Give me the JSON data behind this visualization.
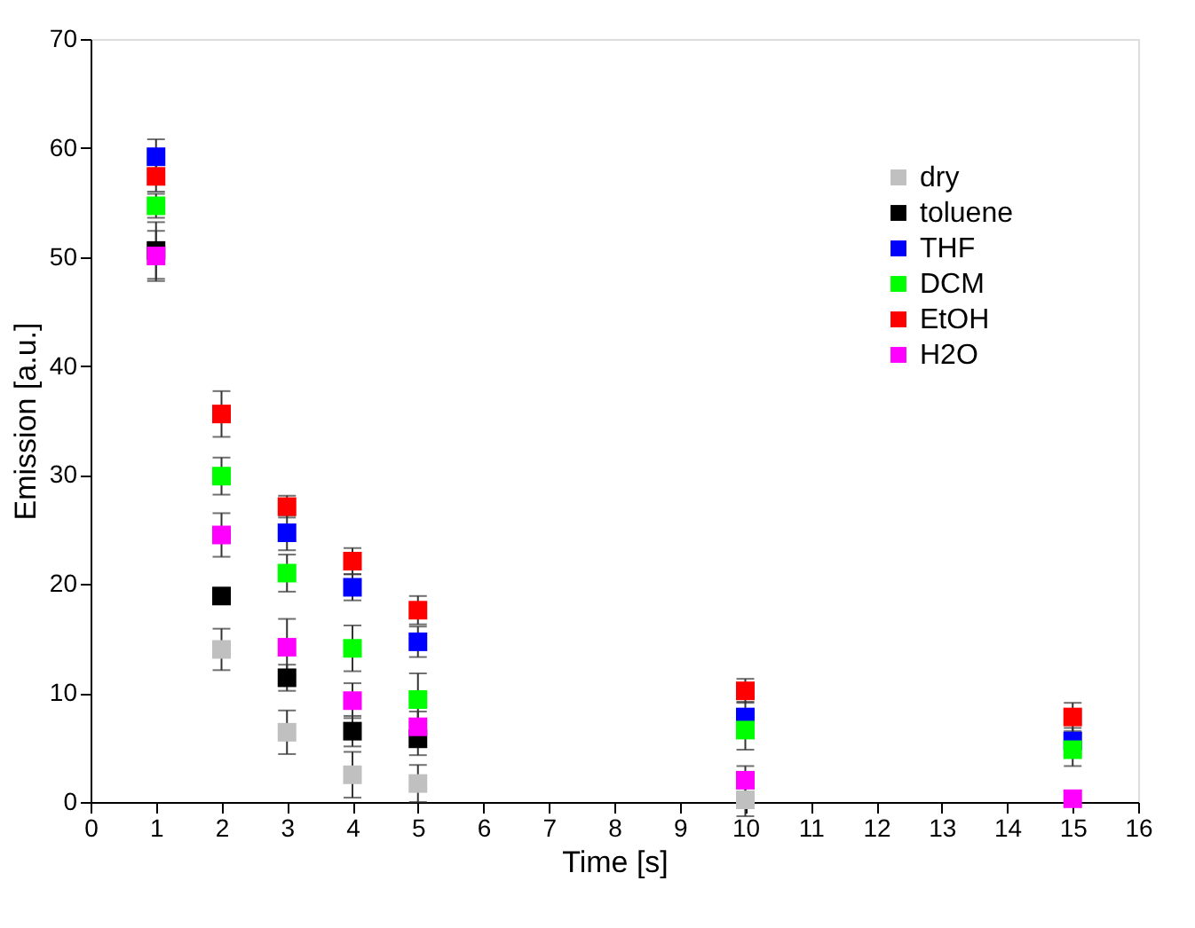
{
  "chart_data": {
    "type": "scatter",
    "xlabel": "Time [s]",
    "ylabel": "Emission [a.u.]",
    "x": [
      1,
      2,
      3,
      4,
      5,
      10,
      15
    ],
    "xlim": [
      0,
      16
    ],
    "xticks": [
      0,
      1,
      2,
      3,
      4,
      5,
      6,
      7,
      8,
      9,
      10,
      11,
      12,
      13,
      14,
      15,
      16
    ],
    "ylim": [
      0,
      70
    ],
    "yticks": [
      0,
      10,
      20,
      30,
      40,
      50,
      60,
      70
    ],
    "marker": "square",
    "grid": false,
    "legend": "top right",
    "series": [
      {
        "name": "dry",
        "color": "#c0c0c0",
        "values": [
          null,
          14.0,
          6.4,
          2.5,
          1.7,
          0.2,
          null
        ],
        "errors": [
          null,
          1.9,
          2.0,
          2.1,
          1.7,
          1.5,
          null
        ]
      },
      {
        "name": "toluene",
        "color": "#000000",
        "values": [
          50.6,
          18.9,
          11.4,
          6.5,
          5.8,
          null,
          null
        ],
        "errors": [
          2.6,
          0.3,
          1.2,
          1.4,
          1.5,
          null,
          null
        ]
      },
      {
        "name": "THF",
        "color": "#0000ff",
        "values": [
          59.2,
          null,
          24.7,
          19.7,
          14.7,
          7.8,
          5.6
        ],
        "errors": [
          1.6,
          null,
          1.6,
          1.2,
          1.4,
          1.4,
          1.2
        ]
      },
      {
        "name": "DCM",
        "color": "#00ff00",
        "values": [
          54.7,
          29.9,
          21.0,
          14.1,
          9.4,
          6.6,
          4.8
        ],
        "errors": [
          1.1,
          1.7,
          1.7,
          2.1,
          2.4,
          1.8,
          1.5
        ]
      },
      {
        "name": "EtOH",
        "color": "#ff0000",
        "values": [
          57.4,
          35.6,
          27.1,
          22.1,
          17.6,
          10.2,
          7.8
        ],
        "errors": [
          1.4,
          2.1,
          1.0,
          1.2,
          1.3,
          1.1,
          1.3
        ]
      },
      {
        "name": "H2O",
        "color": "#ff00ff",
        "values": [
          50.1,
          24.5,
          14.2,
          9.3,
          6.9,
          2.0,
          0.3
        ],
        "errors": [
          2.3,
          2.0,
          2.6,
          1.6,
          1.4,
          1.3,
          null
        ]
      }
    ]
  }
}
